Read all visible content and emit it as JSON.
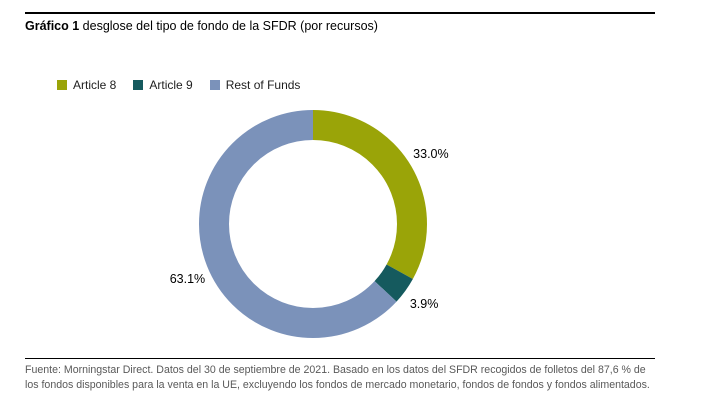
{
  "title": {
    "bold": "Gráfico 1",
    "rest": " desglose del tipo de fondo de la SFDR (por recursos)"
  },
  "legend": [
    {
      "label": "Article 8",
      "color": "#9AA408"
    },
    {
      "label": "Article 9",
      "color": "#155A5E"
    },
    {
      "label": "Rest of Funds",
      "color": "#7B92BA"
    }
  ],
  "chart_data": {
    "type": "pie",
    "subtype": "donut",
    "title": "Gráfico 1 desglose del tipo de fondo de la SFDR (por recursos)",
    "categories": [
      "Article 8",
      "Article 9",
      "Rest of Funds"
    ],
    "values": [
      33.0,
      3.9,
      63.1
    ],
    "labels": [
      "33.0%",
      "3.9%",
      "63.1%"
    ],
    "colors": [
      "#9AA408",
      "#155A5E",
      "#7B92BA"
    ],
    "start_angle_deg_from_top": 0,
    "direction": "clockwise",
    "inner_radius_ratio": 0.74,
    "legend_position": "top-left",
    "grid": false
  },
  "footer": {
    "text": "Fuente: Morningstar Direct. Datos del 30 de septiembre de 2021. Basado en los datos del SFDR recogidos de folletos del 87,6 % de los fondos disponibles para la venta en la UE, excluyendo los fondos de mercado monetario, fondos de fondos y fondos alimentados."
  }
}
